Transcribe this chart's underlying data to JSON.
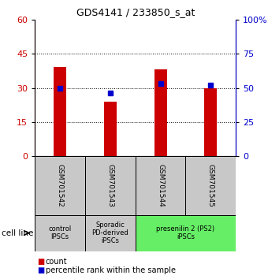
{
  "title": "GDS4141 / 233850_s_at",
  "samples": [
    "GSM701542",
    "GSM701543",
    "GSM701544",
    "GSM701545"
  ],
  "counts": [
    39,
    24,
    38,
    30
  ],
  "percentile_ranks": [
    50,
    46,
    53,
    52
  ],
  "count_color": "#cc0000",
  "percentile_color": "#0000cc",
  "left_yticks": [
    0,
    15,
    30,
    45,
    60
  ],
  "right_yticks": [
    0,
    25,
    50,
    75,
    100
  ],
  "left_ylabel_color": "#cc0000",
  "right_ylabel_color": "#0000cc",
  "ylim_left": [
    0,
    60
  ],
  "ylim_right": [
    0,
    100
  ],
  "grid_lines": [
    15,
    30,
    45
  ],
  "cell_line_groups": [
    {
      "label": "control\nIPSCs",
      "samples": [
        0
      ],
      "color": "#c8c8c8"
    },
    {
      "label": "Sporadic\nPD-derived\niPSCs",
      "samples": [
        1
      ],
      "color": "#c8c8c8"
    },
    {
      "label": "presenilin 2 (PS2)\niPSCs",
      "samples": [
        2,
        3
      ],
      "color": "#66ee66"
    }
  ],
  "cell_line_text": "cell line",
  "legend_count": "count",
  "legend_percentile": "percentile rank within the sample",
  "bar_width": 0.25,
  "sample_bg_color": "#c8c8c8"
}
